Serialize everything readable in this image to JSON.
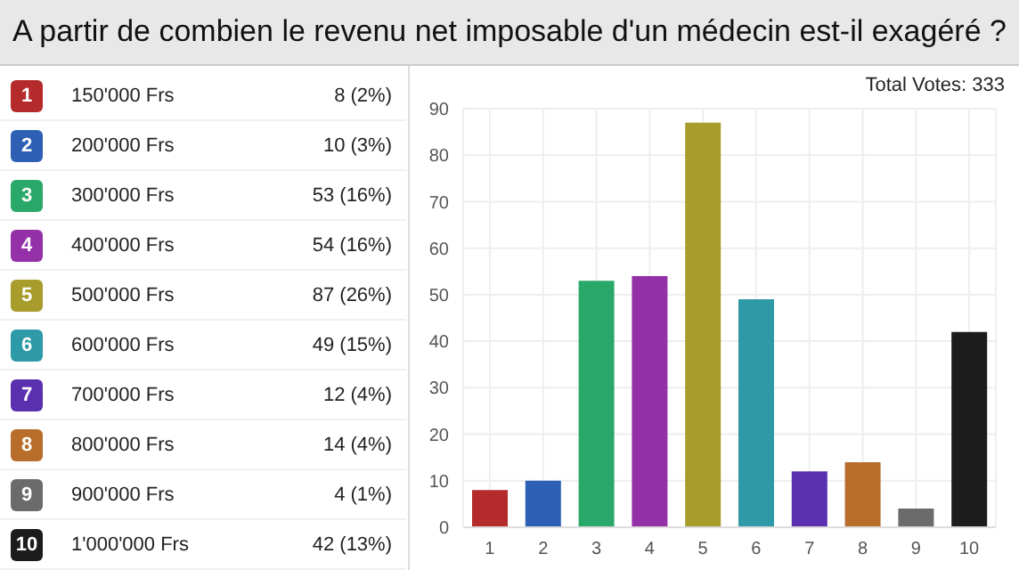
{
  "chart_data": {
    "type": "bar",
    "title": "A partir de combien le revenu net imposable d'un médecin est-il exagéré ?",
    "categories": [
      "1",
      "2",
      "3",
      "4",
      "5",
      "6",
      "7",
      "8",
      "9",
      "10"
    ],
    "values": [
      8,
      10,
      53,
      54,
      87,
      49,
      12,
      14,
      4,
      42
    ],
    "colors": [
      "#b52a2a",
      "#2d5fb5",
      "#2aa86a",
      "#9430a8",
      "#a89c2c",
      "#2e9aa8",
      "#5a2fb0",
      "#b86d2a",
      "#6b6b6b",
      "#1c1c1c"
    ],
    "annotations": [
      "Total Votes: 333",
      "150'000 Frs",
      "8 (2%)",
      "200'000 Frs",
      "10 (3%)",
      "300'000 Frs",
      "53 (16%)",
      "400'000 Frs",
      "54 (16%)",
      "500'000 Frs",
      "87 (26%)",
      "600'000 Frs",
      "49 (15%)",
      "700'000 Frs",
      "12 (4%)",
      "800'000 Frs",
      "14 (4%)",
      "900'000 Frs",
      "4 (1%)",
      "1'000'000 Frs",
      "42 (13%)"
    ],
    "ylim": [
      0,
      90
    ],
    "yticks": [
      0,
      10,
      20,
      30,
      40,
      50,
      60,
      70,
      80,
      90
    ],
    "grid": true
  }
}
